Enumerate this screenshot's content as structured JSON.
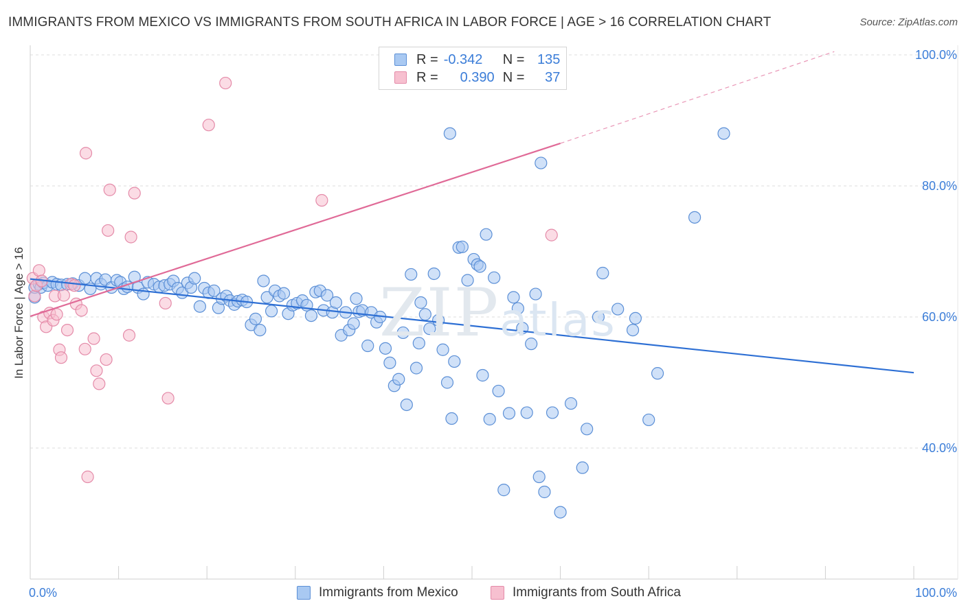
{
  "title": "IMMIGRANTS FROM MEXICO VS IMMIGRANTS FROM SOUTH AFRICA IN LABOR FORCE | AGE > 16 CORRELATION CHART",
  "source": "Source: ZipAtlas.com",
  "watermark": {
    "zip": "ZIP",
    "atlas": "atlas"
  },
  "legend": {
    "r_label": "R =",
    "n_label": "N =",
    "rows": [
      {
        "r": "-0.342",
        "n": "135",
        "fill": "#a9c9f2",
        "stroke": "#5b8fd6"
      },
      {
        "r": "0.390",
        "n": "37",
        "fill": "#f7c0d0",
        "stroke": "#e48aa8"
      }
    ]
  },
  "series_labels": {
    "mexico": "Immigrants from Mexico",
    "south_africa": "Immigrants from South Africa"
  },
  "colors": {
    "mexico_fill": "#a9c9f2",
    "mexico_stroke": "#5b8fd6",
    "mexico_line": "#2d6fd4",
    "sa_fill": "#f7c0d0",
    "sa_stroke": "#e48aa8",
    "sa_line": "#e06a97",
    "tick_label": "#3b7dd8",
    "grid": "#dedede"
  },
  "chart_data": {
    "type": "scatter",
    "title": "IMMIGRANTS FROM MEXICO VS IMMIGRANTS FROM SOUTH AFRICA IN LABOR FORCE | AGE > 16 CORRELATION CHART",
    "xlabel": "",
    "ylabel": "In Labor Force | Age > 16",
    "xlim": [
      0,
      100
    ],
    "ylim": [
      20,
      102
    ],
    "x_tick_labels": [
      "0.0%",
      "100.0%"
    ],
    "y_ticks": [
      40,
      60,
      80,
      100
    ],
    "y_tick_labels": [
      "40.0%",
      "60.0%",
      "80.0%",
      "100.0%"
    ],
    "grid": true,
    "series": [
      {
        "name": "Immigrants from Mexico",
        "R": -0.342,
        "N": 135,
        "trend": {
          "x": [
            0,
            100
          ],
          "y": [
            65.8,
            51.5
          ],
          "dashed_extension": false
        },
        "points": [
          [
            0.5,
            63.0
          ],
          [
            0.5,
            64.5
          ],
          [
            1.0,
            65.0
          ],
          [
            1.2,
            64.5
          ],
          [
            1.5,
            65.2
          ],
          [
            2.0,
            64.8
          ],
          [
            2.5,
            65.3
          ],
          [
            3.0,
            65.0
          ],
          [
            3.5,
            64.9
          ],
          [
            4.2,
            65.0
          ],
          [
            4.8,
            65.1
          ],
          [
            5.5,
            64.8
          ],
          [
            6.2,
            65.9
          ],
          [
            6.8,
            64.3
          ],
          [
            7.5,
            65.9
          ],
          [
            8.0,
            65.0
          ],
          [
            8.5,
            65.7
          ],
          [
            9.2,
            64.5
          ],
          [
            9.8,
            65.6
          ],
          [
            10.2,
            65.3
          ],
          [
            10.6,
            64.3
          ],
          [
            11.0,
            64.6
          ],
          [
            11.8,
            66.1
          ],
          [
            12.2,
            64.5
          ],
          [
            12.8,
            63.5
          ],
          [
            13.3,
            65.3
          ],
          [
            14.0,
            65.0
          ],
          [
            14.6,
            64.6
          ],
          [
            15.2,
            64.8
          ],
          [
            15.8,
            65.0
          ],
          [
            16.2,
            65.5
          ],
          [
            16.7,
            64.4
          ],
          [
            17.2,
            63.7
          ],
          [
            17.8,
            65.2
          ],
          [
            18.2,
            64.5
          ],
          [
            18.6,
            65.9
          ],
          [
            19.2,
            61.6
          ],
          [
            19.7,
            64.4
          ],
          [
            20.2,
            63.7
          ],
          [
            20.8,
            64.0
          ],
          [
            21.3,
            61.4
          ],
          [
            21.7,
            62.8
          ],
          [
            22.2,
            63.2
          ],
          [
            22.6,
            62.5
          ],
          [
            23.1,
            61.9
          ],
          [
            23.5,
            62.4
          ],
          [
            24.0,
            62.6
          ],
          [
            24.5,
            62.3
          ],
          [
            25.0,
            58.8
          ],
          [
            25.5,
            59.7
          ],
          [
            26.0,
            58.0
          ],
          [
            26.4,
            65.5
          ],
          [
            26.8,
            63.0
          ],
          [
            27.3,
            60.9
          ],
          [
            27.7,
            64.0
          ],
          [
            28.2,
            63.2
          ],
          [
            28.7,
            63.6
          ],
          [
            29.2,
            60.5
          ],
          [
            29.7,
            61.8
          ],
          [
            30.2,
            62.1
          ],
          [
            30.8,
            62.5
          ],
          [
            31.3,
            61.8
          ],
          [
            31.8,
            60.2
          ],
          [
            32.3,
            63.8
          ],
          [
            32.8,
            64.0
          ],
          [
            33.2,
            61.0
          ],
          [
            33.6,
            63.3
          ],
          [
            34.2,
            60.7
          ],
          [
            34.6,
            62.2
          ],
          [
            35.2,
            57.2
          ],
          [
            35.7,
            60.7
          ],
          [
            36.1,
            58.0
          ],
          [
            36.6,
            59.0
          ],
          [
            37.2,
            60.8
          ],
          [
            37.6,
            61.0
          ],
          [
            38.2,
            55.6
          ],
          [
            38.6,
            60.7
          ],
          [
            39.2,
            59.2
          ],
          [
            39.6,
            60.0
          ],
          [
            40.2,
            55.2
          ],
          [
            40.7,
            53.0
          ],
          [
            41.2,
            49.5
          ],
          [
            41.7,
            50.5
          ],
          [
            42.2,
            57.6
          ],
          [
            42.6,
            46.6
          ],
          [
            43.1,
            66.5
          ],
          [
            43.7,
            52.2
          ],
          [
            44.2,
            62.2
          ],
          [
            44.7,
            60.4
          ],
          [
            45.2,
            58.2
          ],
          [
            45.7,
            66.6
          ],
          [
            46.2,
            59.5
          ],
          [
            46.7,
            55.0
          ],
          [
            47.2,
            50.0
          ],
          [
            47.7,
            44.5
          ],
          [
            48.0,
            53.2
          ],
          [
            48.5,
            70.6
          ],
          [
            48.9,
            70.7
          ],
          [
            49.5,
            65.6
          ],
          [
            50.2,
            68.8
          ],
          [
            50.6,
            68.0
          ],
          [
            50.9,
            67.7
          ],
          [
            51.2,
            51.1
          ],
          [
            51.6,
            72.6
          ],
          [
            52.0,
            44.4
          ],
          [
            52.5,
            66.0
          ],
          [
            53.0,
            48.7
          ],
          [
            53.6,
            33.6
          ],
          [
            54.2,
            45.3
          ],
          [
            54.7,
            63.0
          ],
          [
            55.2,
            61.3
          ],
          [
            55.7,
            58.3
          ],
          [
            56.2,
            45.4
          ],
          [
            56.7,
            55.9
          ],
          [
            57.2,
            63.5
          ],
          [
            57.6,
            35.6
          ],
          [
            58.2,
            33.3
          ],
          [
            59.1,
            45.4
          ],
          [
            60.0,
            30.2
          ],
          [
            61.2,
            46.8
          ],
          [
            62.5,
            37.0
          ],
          [
            63.0,
            42.9
          ],
          [
            64.8,
            66.7
          ],
          [
            66.5,
            61.2
          ],
          [
            68.5,
            59.8
          ],
          [
            70.0,
            44.3
          ],
          [
            71.0,
            51.4
          ],
          [
            75.2,
            75.2
          ],
          [
            57.8,
            83.5
          ],
          [
            47.5,
            88.0
          ],
          [
            78.5,
            88.0
          ],
          [
            68.2,
            58.0
          ],
          [
            44.0,
            56.0
          ],
          [
            64.3,
            60.0
          ],
          [
            36.9,
            62.8
          ]
        ]
      },
      {
        "name": "Immigrants from South Africa",
        "R": 0.39,
        "N": 37,
        "trend": {
          "x": [
            0,
            60
          ],
          "y": [
            60.1,
            86.5
          ],
          "dashed_extension": {
            "x": [
              60,
              91
            ],
            "y": [
              86.5,
              100.5
            ]
          }
        },
        "points": [
          [
            0.3,
            65.9
          ],
          [
            0.5,
            63.2
          ],
          [
            0.7,
            64.8
          ],
          [
            1.0,
            67.1
          ],
          [
            1.3,
            65.5
          ],
          [
            1.5,
            60.0
          ],
          [
            1.8,
            58.5
          ],
          [
            2.2,
            60.6
          ],
          [
            2.6,
            59.5
          ],
          [
            2.8,
            63.2
          ],
          [
            3.0,
            60.4
          ],
          [
            3.3,
            55.0
          ],
          [
            3.5,
            53.8
          ],
          [
            3.8,
            63.3
          ],
          [
            4.2,
            58.0
          ],
          [
            4.6,
            65.0
          ],
          [
            5.0,
            64.8
          ],
          [
            5.2,
            62.0
          ],
          [
            5.8,
            61.0
          ],
          [
            6.2,
            55.1
          ],
          [
            6.3,
            85.0
          ],
          [
            6.5,
            35.6
          ],
          [
            7.2,
            56.7
          ],
          [
            7.5,
            51.8
          ],
          [
            7.8,
            49.8
          ],
          [
            8.6,
            53.5
          ],
          [
            8.8,
            73.2
          ],
          [
            9.0,
            79.4
          ],
          [
            11.2,
            57.2
          ],
          [
            11.4,
            72.2
          ],
          [
            11.8,
            78.9
          ],
          [
            15.3,
            62.1
          ],
          [
            15.6,
            47.6
          ],
          [
            20.2,
            89.3
          ],
          [
            22.1,
            95.7
          ],
          [
            33.0,
            77.8
          ],
          [
            59.0,
            72.5
          ]
        ]
      }
    ]
  }
}
